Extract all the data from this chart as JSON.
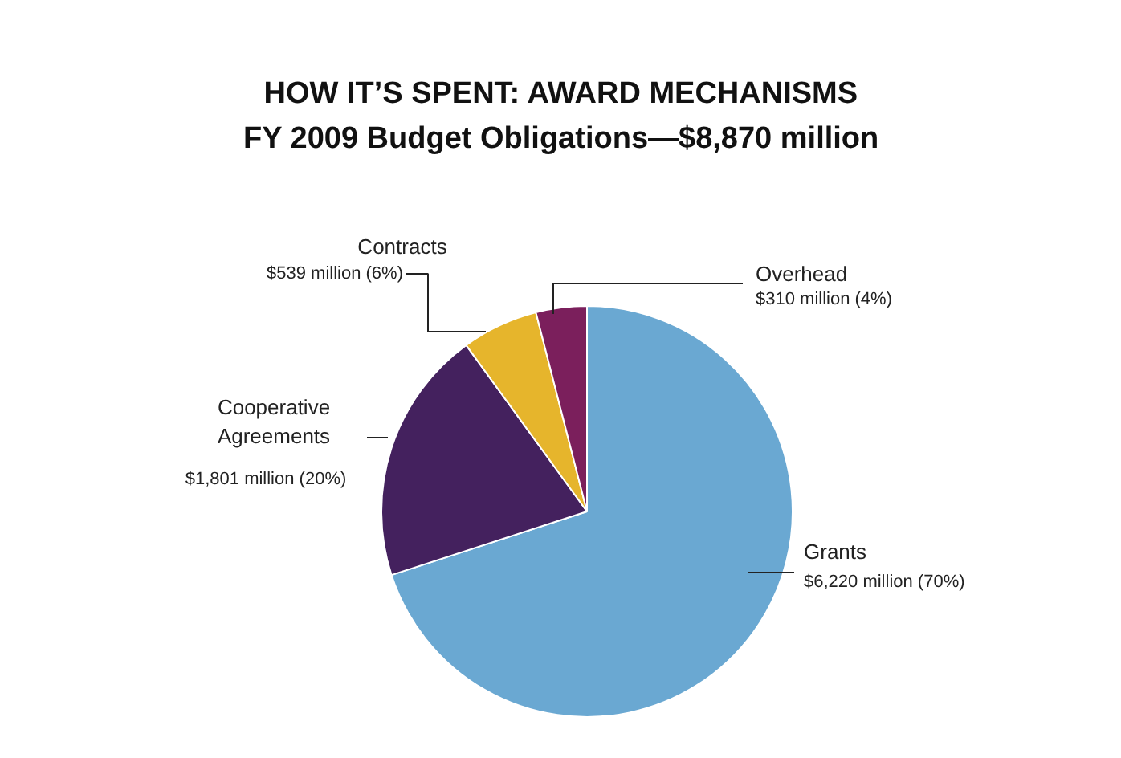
{
  "chart_data": {
    "type": "pie",
    "title": "HOW IT’S SPENT: AWARD MECHANISMS",
    "subtitle": "FY 2009 Budget Obligations—$8,870 million",
    "categories": [
      "Grants",
      "Cooperative Agreements",
      "Contracts",
      "Overhead"
    ],
    "values": [
      70,
      20,
      6,
      4
    ],
    "colors": [
      "#6aa8d2",
      "#44215e",
      "#e6b52c",
      "#7b1f5c"
    ],
    "value_labels": [
      "$6,220 million (70%)",
      "$1,801 million (20%)",
      "$539 million (6%)",
      "$310 million (4%)"
    ]
  }
}
